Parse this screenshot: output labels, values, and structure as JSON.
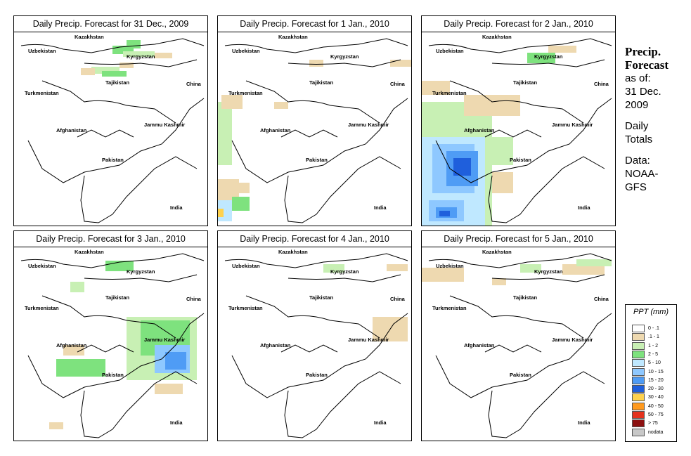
{
  "panels": [
    {
      "title": "Daily Precip. Forecast for  31 Dec., 2009"
    },
    {
      "title": "Daily Precip. Forecast for  1 Jan., 2010"
    },
    {
      "title": "Daily Precip. Forecast for  2 Jan., 2010"
    },
    {
      "title": "Daily Precip. Forecast for  3 Jan., 2010"
    },
    {
      "title": "Daily Precip. Forecast for  4 Jan., 2010"
    },
    {
      "title": "Daily Precip. Forecast for  5 Jan., 2010"
    }
  ],
  "map_labels": {
    "kazakhstan": "Kazakhstan",
    "uzbekistan": "Uzbekistan",
    "kyrgyzstan": "Kyrgyzstan",
    "tajikistan": "Tajikistan",
    "turkmenistan": "Turkmenistan",
    "china": "China",
    "jammu_kashmir": "Jammu Kashmir",
    "afghanistan": "Afghanistan",
    "pakistan": "Pakistan",
    "india": "India"
  },
  "side": {
    "title_line1": "Precip.",
    "title_line2": "Forecast",
    "asof_line1": "as of:",
    "asof_line2": "31 Dec.",
    "asof_line3": "2009",
    "totals_line1": "Daily",
    "totals_line2": "Totals",
    "data_line1": "Data:",
    "data_line2": "NOAA-",
    "data_line3": "GFS"
  },
  "legend": {
    "title": "PPT (mm)",
    "items": [
      {
        "label": "0 - .1",
        "color": "#ffffff"
      },
      {
        "label": ".1 - 1",
        "color": "#eed9b0"
      },
      {
        "label": "1 - 2",
        "color": "#c8f0b4"
      },
      {
        "label": "2 - 5",
        "color": "#7ee27e"
      },
      {
        "label": "5 - 10",
        "color": "#bfe8ff"
      },
      {
        "label": "10 - 15",
        "color": "#8ec8ff"
      },
      {
        "label": "15 - 20",
        "color": "#4f9cf5"
      },
      {
        "label": "20 - 30",
        "color": "#1f5fdc"
      },
      {
        "label": "30 - 40",
        "color": "#ffd24d"
      },
      {
        "label": "40 - 50",
        "color": "#ff9a1e"
      },
      {
        "label": "50 - 75",
        "color": "#e4321e"
      },
      {
        "label": "> 75",
        "color": "#8c1010"
      },
      {
        "label": "nodata",
        "color": "#c8c8c8"
      }
    ]
  }
}
